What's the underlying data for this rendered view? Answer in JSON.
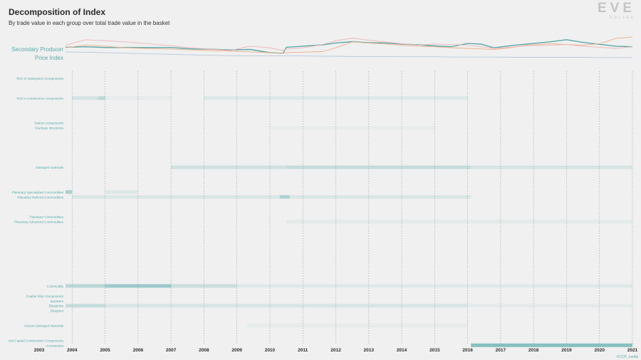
{
  "title": "Decomposition of Index",
  "subtitle": "By trade value in each group over total trade value in the basket",
  "logo": {
    "main": "EVE",
    "sub": "ONLINE"
  },
  "credit": "©CCP_Lerikk",
  "colors": {
    "background": "#f0f0f0",
    "teal": "#5aa9a9",
    "orange": "#f0b08a",
    "pink": "#f0b4b8",
    "blue": "#b8c8dc",
    "grid": "#9a9a9a"
  },
  "chart_data": {
    "type": "heatmap",
    "x_range": [
      2003,
      2021
    ],
    "x_ticks": [
      "2003",
      "2004",
      "2005",
      "2006",
      "2007",
      "2008",
      "2009",
      "2010",
      "2011",
      "2012",
      "2013",
      "2014",
      "2015",
      "2016",
      "2017",
      "2018",
      "2019",
      "2020",
      "2021"
    ],
    "index_labels": [
      "Secondary Producer",
      "Price Index"
    ],
    "index_series": {
      "x": [
        2003.8,
        2004.4,
        2005,
        2005.6,
        2006.2,
        2007,
        2007.6,
        2008.2,
        2008.8,
        2009.4,
        2010,
        2010.4,
        2010.5,
        2011,
        2011.6,
        2012,
        2012.5,
        2013,
        2013.5,
        2014,
        2014.5,
        2015,
        2015.5,
        2016,
        2016.4,
        2016.8,
        2017.3,
        2017.8,
        2018.5,
        2019,
        2019.5,
        2020,
        2020.5,
        2021
      ],
      "series": [
        {
          "color": "#5aa9a9",
          "values": [
            0.62,
            0.64,
            0.61,
            0.61,
            0.61,
            0.61,
            0.56,
            0.55,
            0.52,
            0.54,
            0.42,
            0.4,
            0.62,
            0.66,
            0.71,
            0.78,
            0.83,
            0.79,
            0.78,
            0.74,
            0.71,
            0.67,
            0.64,
            0.76,
            0.74,
            0.6,
            0.68,
            0.74,
            0.82,
            0.9,
            0.8,
            0.73,
            0.66,
            0.64
          ]
        },
        {
          "color": "#f0b08a",
          "values": [
            0.6,
            0.7,
            0.66,
            0.6,
            0.58,
            0.55,
            0.52,
            0.5,
            0.48,
            0.45,
            0.42,
            0.4,
            0.42,
            0.44,
            0.46,
            0.6,
            0.82,
            0.78,
            0.74,
            0.7,
            0.66,
            0.64,
            0.6,
            0.58,
            0.56,
            0.54,
            0.6,
            0.7,
            0.75,
            0.72,
            0.7,
            0.75,
            0.95,
            1.0
          ]
        },
        {
          "color": "#f0b4b8",
          "values": [
            0.7,
            0.9,
            0.86,
            0.82,
            0.76,
            0.68,
            0.6,
            0.55,
            0.5,
            0.66,
            0.6,
            0.5,
            0.55,
            0.6,
            0.72,
            0.86,
            0.96,
            0.88,
            0.82,
            0.75,
            0.7,
            0.74,
            0.72,
            0.7,
            0.64,
            0.58,
            0.62,
            0.68,
            0.7,
            0.72,
            0.66,
            0.62,
            0.58,
            0.64
          ]
        },
        {
          "color": "#b8c8dc",
          "values": [
            0.45,
            0.44,
            0.42,
            0.4,
            0.38,
            0.36,
            0.34,
            0.32,
            0.31,
            0.3,
            0.3,
            0.3,
            0.3,
            0.3,
            0.29,
            0.29,
            0.28,
            0.28,
            0.28,
            0.27,
            0.27,
            0.27,
            0.26,
            0.26,
            0.26,
            0.26,
            0.25,
            0.25,
            0.25,
            0.25,
            0.25,
            0.24,
            0.24,
            0.24
          ]
        }
      ]
    },
    "rows": [
      {
        "label": "Tech III Subsystem Components",
        "idx": 0,
        "segments": []
      },
      {
        "label": "Tech II construction components",
        "idx": 4,
        "segments": [
          [
            2004,
            2004.8,
            0.18
          ],
          [
            2004.8,
            2005,
            0.35
          ],
          [
            2005,
            2007,
            0.06
          ],
          [
            2008,
            2016,
            0.12
          ]
        ]
      },
      {
        "label": "Station components",
        "idx": 9,
        "segments": []
      },
      {
        "label": "Starbase structures",
        "idx": 10,
        "segments": [
          [
            2010,
            2015,
            0.05
          ]
        ]
      },
      {
        "label": "Salvaged materials",
        "idx": 18,
        "segments": [
          [
            2007,
            2010.5,
            0.22
          ],
          [
            2010.5,
            2016.1,
            0.28
          ],
          [
            2016.1,
            2021,
            0.16
          ]
        ]
      },
      {
        "label": "Planetary Specialized Commodities",
        "idx": 23,
        "segments": [
          [
            2003.8,
            2004,
            0.45
          ],
          [
            2005,
            2006,
            0.12
          ]
        ]
      },
      {
        "label": "Planetary Refined Commodities",
        "idx": 24,
        "segments": [
          [
            2004,
            2016.1,
            0.14
          ],
          [
            2010.3,
            2010.6,
            0.35
          ]
        ]
      },
      {
        "label": "Planetary Commodities",
        "idx": 28,
        "segments": []
      },
      {
        "label": "Planetary Advanced Commodities",
        "idx": 29,
        "segments": [
          [
            2010.5,
            2021,
            0.08
          ]
        ]
      },
      {
        "label": "Commodity",
        "idx": 42,
        "segments": [
          [
            2003.8,
            2005,
            0.35
          ],
          [
            2005,
            2007,
            0.55
          ],
          [
            2007,
            2009,
            0.25
          ],
          [
            2009,
            2021,
            0.1
          ]
        ]
      },
      {
        "label": "Capital Ship Components",
        "idx": 44,
        "segments": []
      },
      {
        "label": "Boosters",
        "idx": 45,
        "segments": []
      },
      {
        "label": "Blueprints",
        "idx": 46,
        "segments": [
          [
            2003.8,
            2005,
            0.28
          ],
          [
            2005,
            2016,
            0.15
          ],
          [
            2016,
            2021,
            0.08
          ]
        ]
      },
      {
        "label": "Blueprint",
        "idx": 47,
        "segments": []
      },
      {
        "label": "Ancient Salvaged Materials",
        "idx": 50,
        "segments": [
          [
            2009.3,
            2016,
            0.06
          ]
        ]
      },
      {
        "label": "und Capital Construction Components",
        "idx": 53,
        "segments": []
      },
      {
        "label": "Accessories",
        "idx": 54,
        "segments": [
          [
            2016.1,
            2021,
            0.7
          ]
        ]
      }
    ]
  }
}
